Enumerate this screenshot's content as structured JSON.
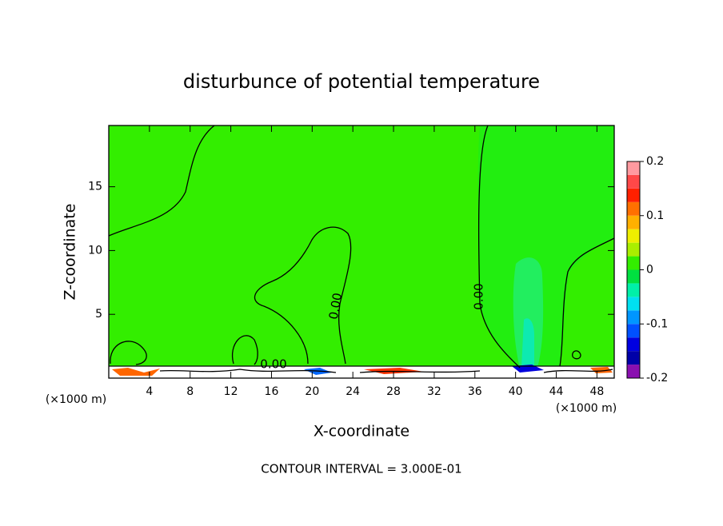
{
  "chart_data": {
    "type": "contour",
    "title": "disturbunce of potential temperature",
    "x_label": "X-coordinate",
    "y_label": "Z-coordinate",
    "x_unit_label": "(×1000 m)",
    "y_unit_label": "(×1000 m)",
    "footnote": "CONTOUR INTERVAL = 3.000E-01",
    "contour_labels": [
      "0.00",
      "0.00",
      "0.00"
    ],
    "xlim": [
      0,
      49.7
    ],
    "ylim": [
      0,
      19.8
    ],
    "xticks": [
      4,
      8,
      12,
      16,
      20,
      24,
      28,
      32,
      36,
      40,
      44,
      48
    ],
    "yticks": [
      5,
      10,
      15
    ],
    "colorbar": {
      "lim": [
        -0.2,
        0.2
      ],
      "ticks": [
        -0.2,
        -0.1,
        0,
        0.1,
        0.2
      ],
      "bounds": [
        -0.2,
        -0.175,
        -0.15,
        -0.125,
        -0.1,
        -0.075,
        -0.05,
        -0.025,
        0,
        0.025,
        0.05,
        0.075,
        0.1,
        0.125,
        0.15,
        0.175,
        0.2
      ],
      "colors": [
        "#8a0fb0",
        "#0000a8",
        "#0000e0",
        "#0050ff",
        "#0096ff",
        "#00e0f0",
        "#00f0a8",
        "#00e040",
        "#33ee00",
        "#aaee00",
        "#eeee00",
        "#ffb000",
        "#ff7000",
        "#ff2000",
        "#ff4848",
        "#ff9aa0"
      ]
    },
    "field_color": "#33ee00"
  }
}
